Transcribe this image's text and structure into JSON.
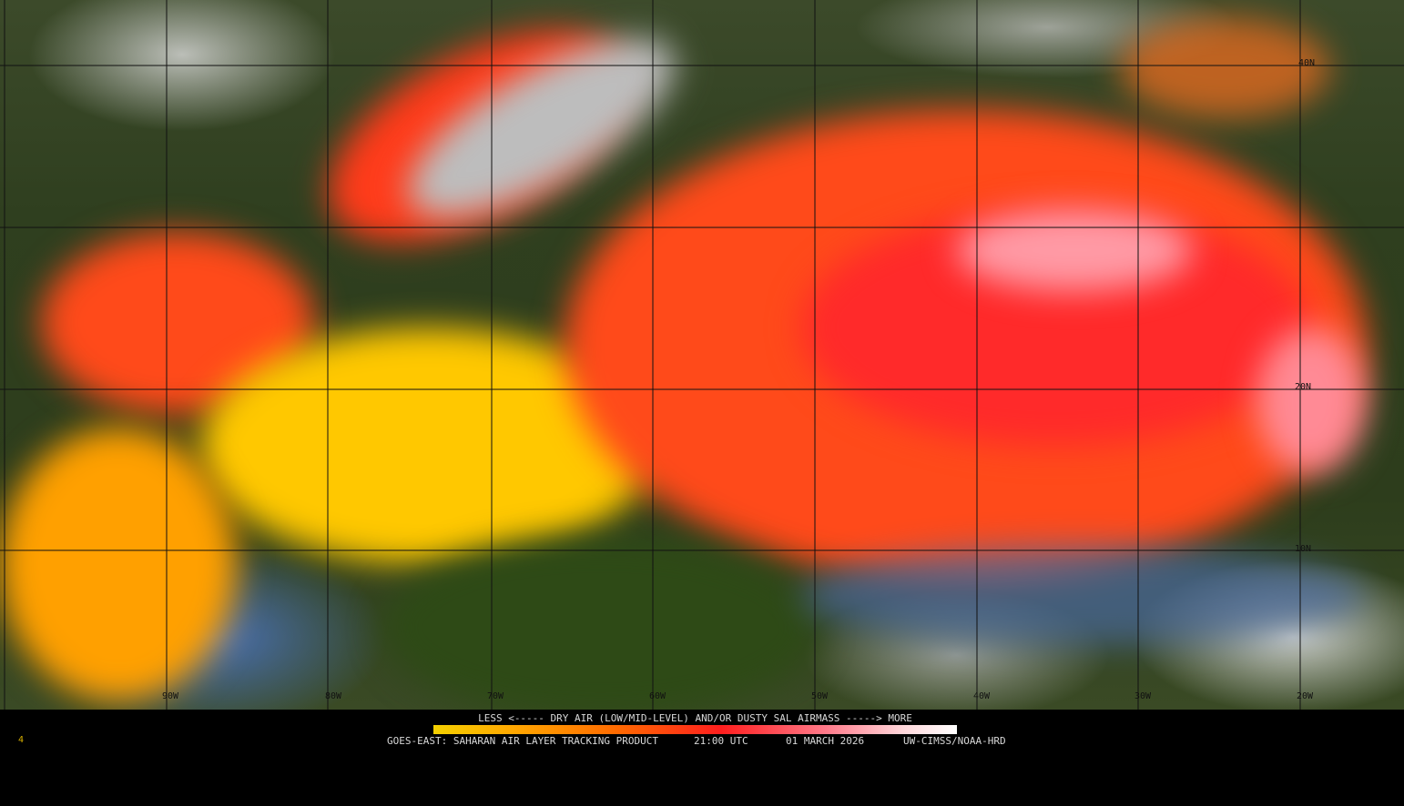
{
  "map": {
    "longitude_labels": [
      "90W",
      "80W",
      "70W",
      "60W",
      "50W",
      "40W",
      "30W",
      "20W"
    ],
    "latitude_labels": [
      "40N",
      "20N",
      "10N"
    ]
  },
  "legend": {
    "title": "LESS <----- DRY AIR (LOW/MID-LEVEL) AND/OR DUSTY SAL AIRMASS -----> MORE",
    "colors": [
      "#f4d000",
      "#ffa800",
      "#ff6a00",
      "#ff1e1e",
      "#ff7a8a",
      "#ffd8dc",
      "#ffffff"
    ]
  },
  "caption": {
    "product": "GOES-EAST: SAHARAN AIR LAYER TRACKING PRODUCT",
    "time": "21:00 UTC",
    "date": "01 MARCH 2026",
    "credit": "UW-CIMSS/NOAA-HRD"
  },
  "corner_mark": "4"
}
